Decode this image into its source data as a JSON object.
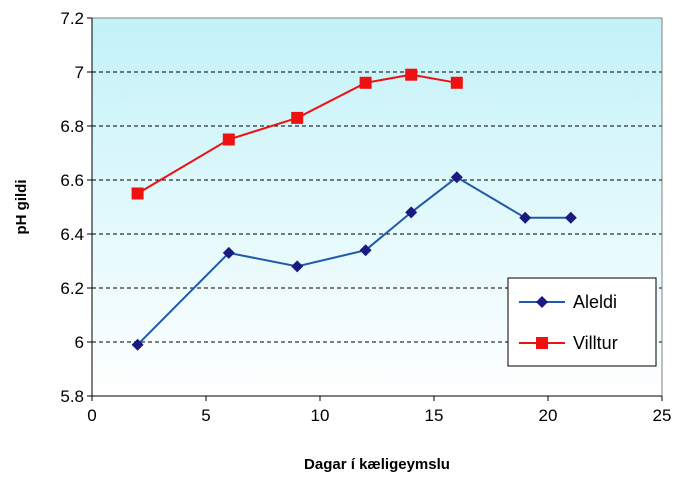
{
  "chart_data": {
    "type": "line",
    "title": "",
    "xlabel": "Dagar í kæligeymslu",
    "ylabel": "pH gildi",
    "xlim": [
      0,
      25
    ],
    "ylim": [
      5.8,
      7.2
    ],
    "xticks": [
      0,
      5,
      10,
      15,
      20,
      25
    ],
    "yticks": [
      5.8,
      6,
      6.2,
      6.4,
      6.6,
      6.8,
      7,
      7.2
    ],
    "xtick_labels": [
      "0",
      "5",
      "10",
      "15",
      "20",
      "25"
    ],
    "ytick_labels": [
      "5.8",
      "6",
      "6.2",
      "6.4",
      "6.6",
      "6.8",
      "7",
      "7.2"
    ],
    "grid": "horizontal dashed",
    "legend_position": "bottom-right",
    "plot_background": "gradient light cyan to white",
    "series": [
      {
        "name": "Aleldi",
        "color": "#1f5aa8",
        "marker_color": "#1a1a80",
        "marker": "diamond",
        "x": [
          2,
          6,
          9,
          12,
          14,
          16,
          19,
          21
        ],
        "y": [
          5.99,
          6.33,
          6.28,
          6.34,
          6.48,
          6.61,
          6.46,
          6.46
        ]
      },
      {
        "name": "Villtur",
        "color": "#ee1111",
        "marker_color": "#ee1111",
        "marker": "square",
        "x": [
          2,
          6,
          9,
          12,
          14,
          16
        ],
        "y": [
          6.55,
          6.75,
          6.83,
          6.96,
          6.99,
          6.96
        ]
      }
    ]
  }
}
